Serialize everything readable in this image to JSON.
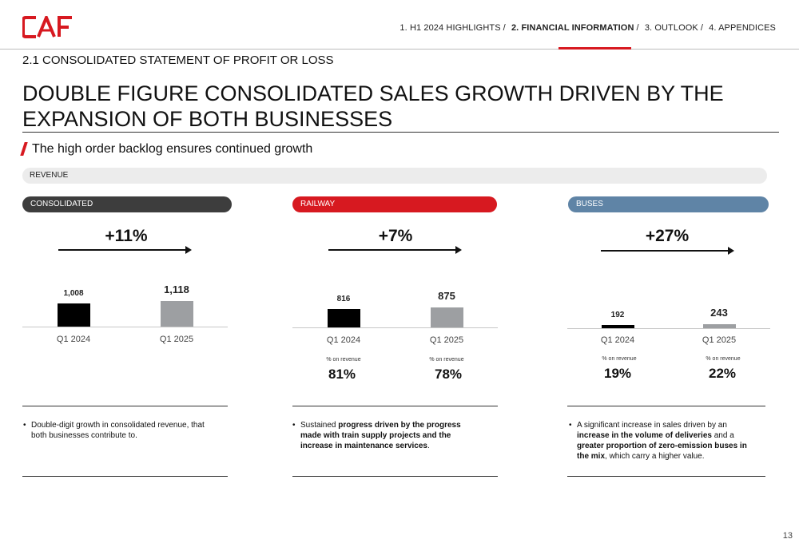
{
  "brand": {
    "logo_text": "CAF",
    "accent": "#d71920"
  },
  "nav": {
    "items": [
      "1. H1 2024 HIGHLIGHTS",
      "2. FINANCIAL INFORMATION",
      "3. OUTLOOK",
      "4. APPENDICES"
    ],
    "separator": "/",
    "active_index": 1
  },
  "section_title": "2.1 CONSOLIDATED STATEMENT OF PROFIT OR LOSS",
  "headline": "DOUBLE FIGURE CONSOLIDATED SALES GROWTH DRIVEN BY THE EXPANSION OF BOTH BUSINESSES",
  "subtitle": "The high order backlog ensures continued growth",
  "revenue_label": "REVENUE",
  "segments": {
    "consolidated": {
      "label": "CONSOLIDATED",
      "color": "#3d3d3d",
      "growth": "+11%",
      "bullet_pre": "Double-digit growth in consolidated revenue, that both businesses contribute to."
    },
    "railway": {
      "label": "RAILWAY",
      "color": "#d71920",
      "growth": "+7%",
      "pct_label": "% on revenue",
      "pct_2024": "81%",
      "pct_2025": "78%",
      "bullet_pre": "Sustained ",
      "bullet_b1": "progress driven by the progress made with train supply projects and the increase in maintenance services",
      "bullet_post": "."
    },
    "buses": {
      "label": "BUSES",
      "color": "#5f84a6",
      "growth": "+27%",
      "pct_label": "% on revenue",
      "pct_2024": "19%",
      "pct_2025": "22%",
      "bullet_pre": "A significant increase in sales driven by an ",
      "bullet_b1": "increase in the volume of deliveries",
      "bullet_mid": " and a ",
      "bullet_b2": "greater proportion of zero-emission buses in the mix",
      "bullet_post": ", which carry a higher value."
    }
  },
  "chart_data": [
    {
      "type": "bar",
      "title": "CONSOLIDATED",
      "categories": [
        "Q1 2024",
        "Q1 2025"
      ],
      "values": [
        1008,
        1118
      ],
      "value_labels": [
        "1,008",
        "1,118"
      ],
      "colors": [
        "#000000",
        "#9d9fa2"
      ]
    },
    {
      "type": "bar",
      "title": "RAILWAY",
      "categories": [
        "Q1 2024",
        "Q1 2025"
      ],
      "values": [
        816,
        875
      ],
      "value_labels": [
        "816",
        "875"
      ],
      "colors": [
        "#000000",
        "#9d9fa2"
      ]
    },
    {
      "type": "bar",
      "title": "BUSES",
      "categories": [
        "Q1 2024",
        "Q1 2025"
      ],
      "values": [
        192,
        243
      ],
      "value_labels": [
        "192",
        "243"
      ],
      "colors": [
        "#000000",
        "#9d9fa2"
      ]
    }
  ],
  "page_number": "13"
}
